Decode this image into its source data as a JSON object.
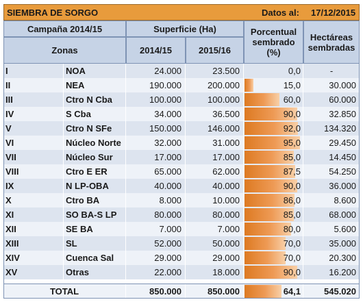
{
  "title": "SIEMBRA DE SORGO",
  "date_label": "Datos al:",
  "date_value": "17/12/2015",
  "headers": {
    "campaign": "Campaña 2014/15",
    "surface": "Superficie (Ha)",
    "zones": "Zonas",
    "y1": "2014/15",
    "y2": "2015/16",
    "pct_l1": "Porcentual",
    "pct_l2": "sembrado",
    "pct_l3": "(%)",
    "ha_l1": "Hectáreas",
    "ha_l2": "sembradas"
  },
  "rows": [
    {
      "roman": "I",
      "zone": "NOA",
      "s14": "24.000",
      "s15": "23.500",
      "pct": "0,0",
      "pct_value": 0.0,
      "ha": "-"
    },
    {
      "roman": "II",
      "zone": "NEA",
      "s14": "190.000",
      "s15": "200.000",
      "pct": "15,0",
      "pct_value": 15.0,
      "ha": "30.000"
    },
    {
      "roman": "III",
      "zone": "Ctro N Cba",
      "s14": "100.000",
      "s15": "100.000",
      "pct": "60,0",
      "pct_value": 60.0,
      "ha": "60.000"
    },
    {
      "roman": "IV",
      "zone": "S Cba",
      "s14": "34.000",
      "s15": "36.500",
      "pct": "90,0",
      "pct_value": 90.0,
      "ha": "32.850"
    },
    {
      "roman": "V",
      "zone": "Ctro N SFe",
      "s14": "150.000",
      "s15": "146.000",
      "pct": "92,0",
      "pct_value": 92.0,
      "ha": "134.320"
    },
    {
      "roman": "VI",
      "zone": "Núcleo Norte",
      "s14": "32.000",
      "s15": "31.000",
      "pct": "95,0",
      "pct_value": 95.0,
      "ha": "29.450"
    },
    {
      "roman": "VII",
      "zone": "Núcleo Sur",
      "s14": "17.000",
      "s15": "17.000",
      "pct": "85,0",
      "pct_value": 85.0,
      "ha": "14.450"
    },
    {
      "roman": "VIII",
      "zone": "Ctro E ER",
      "s14": "65.000",
      "s15": "62.000",
      "pct": "87,5",
      "pct_value": 87.5,
      "ha": "54.250"
    },
    {
      "roman": "IX",
      "zone": "N LP-OBA",
      "s14": "40.000",
      "s15": "40.000",
      "pct": "90,0",
      "pct_value": 90.0,
      "ha": "36.000"
    },
    {
      "roman": "X",
      "zone": "Ctro BA",
      "s14": "8.000",
      "s15": "10.000",
      "pct": "86,0",
      "pct_value": 86.0,
      "ha": "8.600"
    },
    {
      "roman": "XI",
      "zone": "SO BA-S LP",
      "s14": "80.000",
      "s15": "80.000",
      "pct": "85,0",
      "pct_value": 85.0,
      "ha": "68.000"
    },
    {
      "roman": "XII",
      "zone": "SE BA",
      "s14": "7.000",
      "s15": "7.000",
      "pct": "80,0",
      "pct_value": 80.0,
      "ha": "5.600"
    },
    {
      "roman": "XIII",
      "zone": "SL",
      "s14": "52.000",
      "s15": "50.000",
      "pct": "70,0",
      "pct_value": 70.0,
      "ha": "35.000"
    },
    {
      "roman": "XIV",
      "zone": "Cuenca Sal",
      "s14": "29.000",
      "s15": "29.000",
      "pct": "70,0",
      "pct_value": 70.0,
      "ha": "20.300"
    },
    {
      "roman": "XV",
      "zone": "Otras",
      "s14": "22.000",
      "s15": "18.000",
      "pct": "90,0",
      "pct_value": 90.0,
      "ha": "16.200"
    }
  ],
  "total": {
    "label": "TOTAL",
    "s14": "850.000",
    "s15": "850.000",
    "pct": "64,1",
    "pct_value": 64.1,
    "ha": "545.020"
  },
  "colors": {
    "title_bg": "#e89b3c",
    "header_bg": "#c6d3e6",
    "bar": "#dd7a22"
  }
}
